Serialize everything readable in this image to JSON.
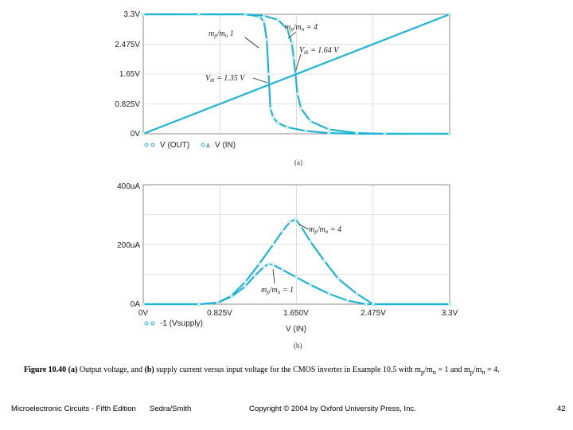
{
  "chart_data": [
    {
      "type": "line",
      "panel_label": "(a)",
      "xlim": [
        0,
        3.3
      ],
      "ylim": [
        0,
        3.3
      ],
      "yticks": [
        "3.3V",
        "2.475V",
        "1.65V",
        "0.825V",
        "0V"
      ],
      "ytick_values": [
        3.3,
        2.475,
        1.65,
        0.825,
        0
      ],
      "grid": true,
      "series": [
        {
          "name": "V (OUT)",
          "label": "m_p/m_n = 1",
          "x": [
            0,
            0.6,
            1.1,
            1.25,
            1.3,
            1.33,
            1.35,
            1.37,
            1.4,
            1.45,
            1.55,
            1.75,
            2.0,
            2.3,
            2.6,
            3.3
          ],
          "y": [
            3.3,
            3.3,
            3.3,
            3.24,
            3.1,
            2.6,
            1.65,
            0.7,
            0.45,
            0.3,
            0.18,
            0.08,
            0.02,
            0,
            0,
            0
          ]
        },
        {
          "name": "V (OUT)",
          "label": "m_p/m_n = 4",
          "x": [
            0,
            0.6,
            1.1,
            1.3,
            1.45,
            1.55,
            1.6,
            1.62,
            1.64,
            1.66,
            1.7,
            1.8,
            2.0,
            2.3,
            2.6,
            3.3
          ],
          "y": [
            3.3,
            3.3,
            3.3,
            3.26,
            3.15,
            2.9,
            2.5,
            2.1,
            1.65,
            1.1,
            0.7,
            0.35,
            0.12,
            0.02,
            0,
            0
          ]
        },
        {
          "name": "V (IN)",
          "x": [
            0,
            3.3
          ],
          "y": [
            0,
            3.3
          ]
        }
      ],
      "legend": [
        "V (OUT)",
        "V (IN)"
      ],
      "annotations": [
        "m_p/m_n = 4",
        "m_p/m_n = 1",
        "V_th = 1.64 V",
        "V_th = 1.35 V"
      ]
    },
    {
      "type": "line",
      "panel_label": "(b)",
      "xlim": [
        0,
        3.3
      ],
      "ylim": [
        0,
        400
      ],
      "xlabel": "V (IN)",
      "xticks": [
        "0V",
        "0.825V",
        "1.650V",
        "2.475V",
        "3.3V"
      ],
      "xtick_values": [
        0,
        0.825,
        1.65,
        2.475,
        3.3
      ],
      "yticks": [
        "400uA",
        "200uA",
        "0A"
      ],
      "ytick_values": [
        400,
        200,
        0
      ],
      "y_unit": "uA",
      "grid": true,
      "series": [
        {
          "name": "-1 (Vsupply)",
          "label": "m_p/m_n = 1",
          "x": [
            0,
            0.6,
            0.8,
            0.95,
            1.1,
            1.2,
            1.3,
            1.35,
            1.4,
            1.5,
            1.65,
            1.8,
            2.0,
            2.2,
            2.4,
            3.3
          ],
          "y": [
            0,
            0,
            5,
            25,
            60,
            95,
            125,
            135,
            132,
            115,
            90,
            65,
            35,
            12,
            0,
            0
          ]
        },
        {
          "name": "-1 (Vsupply)",
          "label": "m_p/m_n = 4",
          "x": [
            0,
            0.6,
            0.8,
            0.95,
            1.1,
            1.25,
            1.4,
            1.5,
            1.58,
            1.64,
            1.7,
            1.8,
            1.95,
            2.1,
            2.3,
            2.475,
            3.3
          ],
          "y": [
            0,
            0,
            5,
            28,
            75,
            135,
            200,
            245,
            275,
            285,
            260,
            210,
            145,
            85,
            35,
            0,
            0
          ]
        }
      ],
      "legend": [
        "-1 (Vsupply)"
      ],
      "annotations": [
        "m_p/m_n = 4",
        "m_p/m_n = 1"
      ]
    }
  ],
  "caption": {
    "figure": "Figure 10.40",
    "part_a": "(a)",
    "text_a": "Output voltage, and",
    "part_b": "(b)",
    "text_b": "supply current versus input voltage for the CMOS inverter in Example 10.5 with m",
    "text_c": " = 1 and m",
    "text_d": " = 4."
  },
  "footer": {
    "book": "Microelectronic Circuits - Fifth Edition",
    "authors": "Sedra/Smith",
    "copyright": "Copyright © 2004 by Oxford University Press, Inc.",
    "page": "42"
  },
  "colors": {
    "curve": "#1fb3d6",
    "grid": "#c8c8c8",
    "axis": "#888888"
  }
}
